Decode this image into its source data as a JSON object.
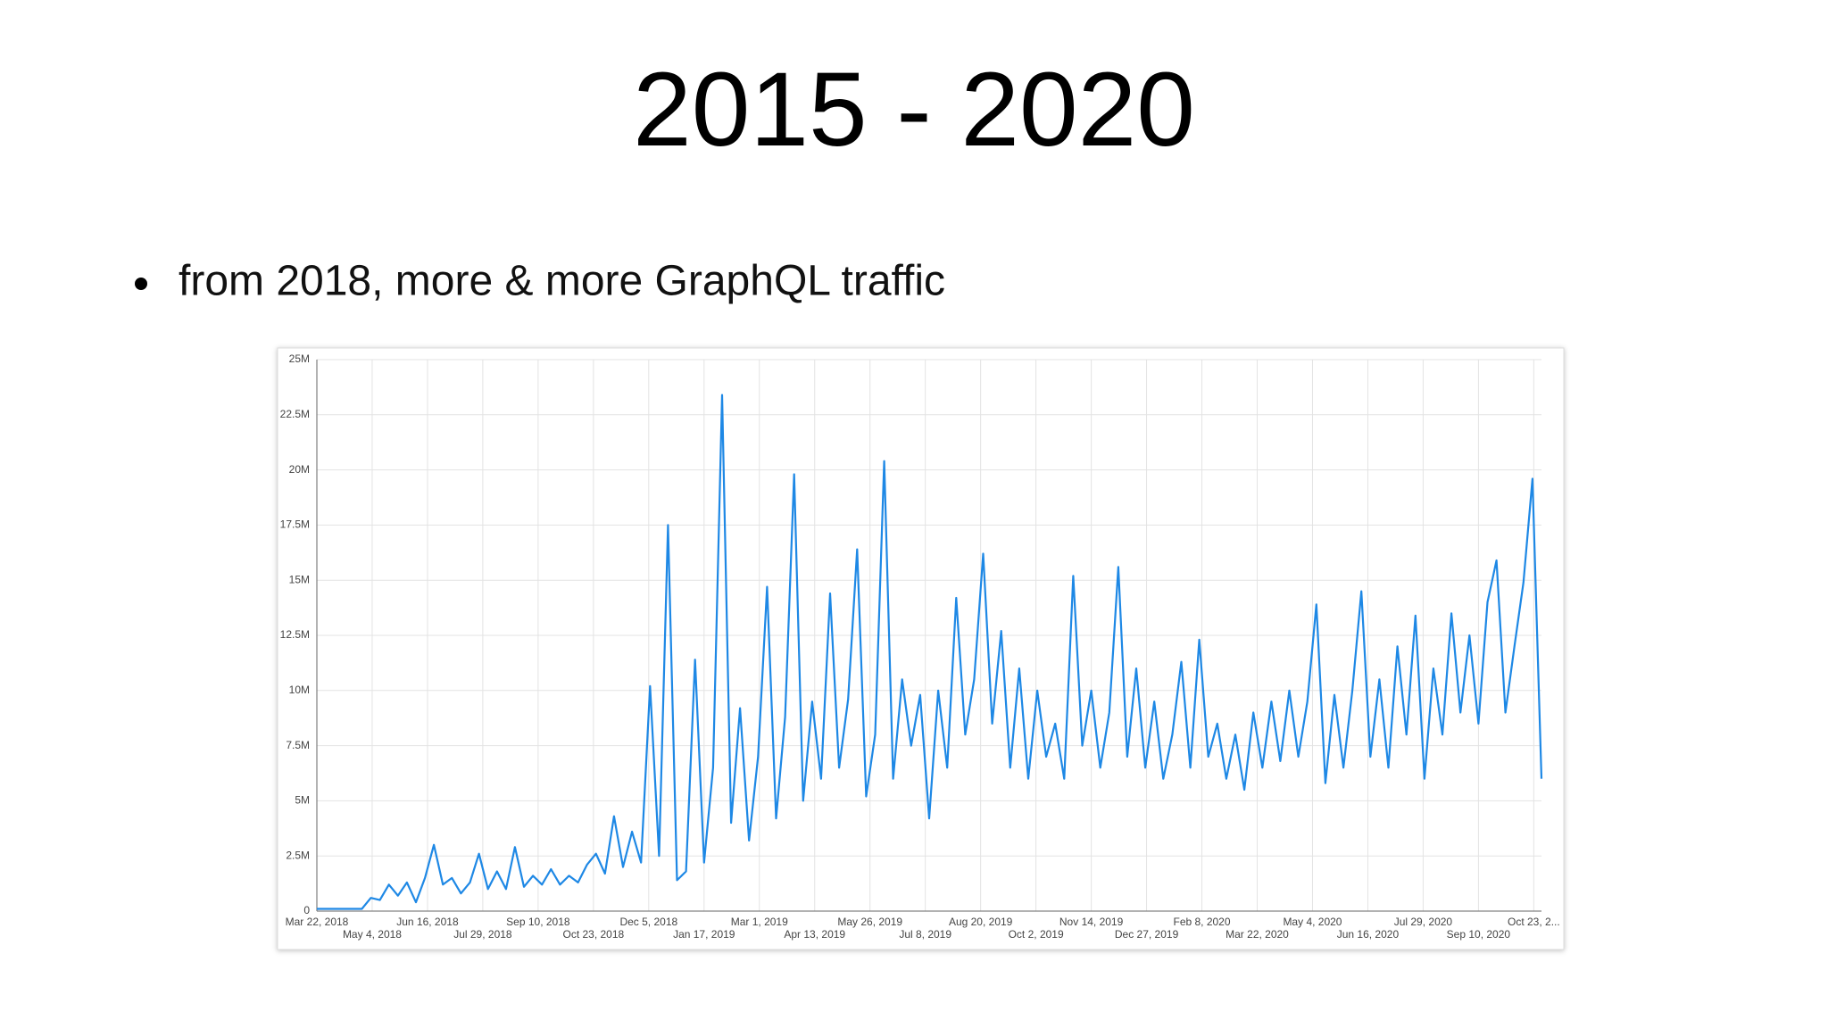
{
  "title": "2015 - 2020",
  "bullets": [
    "from 2018, more & more GraphQL traffic"
  ],
  "chart_data": {
    "type": "line",
    "x": [
      "2018-03-22",
      "2018-03-29",
      "2018-04-05",
      "2018-04-12",
      "2018-04-19",
      "2018-04-26",
      "2018-05-03",
      "2018-05-10",
      "2018-05-17",
      "2018-05-24",
      "2018-05-31",
      "2018-06-07",
      "2018-06-14",
      "2018-06-21",
      "2018-06-28",
      "2018-07-05",
      "2018-07-12",
      "2018-07-19",
      "2018-07-26",
      "2018-08-02",
      "2018-08-09",
      "2018-08-16",
      "2018-08-23",
      "2018-08-30",
      "2018-09-06",
      "2018-09-13",
      "2018-09-20",
      "2018-09-27",
      "2018-10-04",
      "2018-10-11",
      "2018-10-18",
      "2018-10-25",
      "2018-11-01",
      "2018-11-08",
      "2018-11-15",
      "2018-11-22",
      "2018-11-29",
      "2018-12-06",
      "2018-12-13",
      "2018-12-20",
      "2018-12-27",
      "2019-01-03",
      "2019-01-10",
      "2019-01-17",
      "2019-01-24",
      "2019-01-31",
      "2019-02-07",
      "2019-02-14",
      "2019-02-21",
      "2019-02-28",
      "2019-03-07",
      "2019-03-14",
      "2019-03-21",
      "2019-03-28",
      "2019-04-04",
      "2019-04-11",
      "2019-04-18",
      "2019-04-25",
      "2019-05-02",
      "2019-05-09",
      "2019-05-16",
      "2019-05-23",
      "2019-05-30",
      "2019-06-06",
      "2019-06-13",
      "2019-06-20",
      "2019-06-27",
      "2019-07-04",
      "2019-07-11",
      "2019-07-18",
      "2019-07-25",
      "2019-08-01",
      "2019-08-08",
      "2019-08-15",
      "2019-08-22",
      "2019-08-29",
      "2019-09-05",
      "2019-09-12",
      "2019-09-19",
      "2019-09-26",
      "2019-10-03",
      "2019-10-10",
      "2019-10-17",
      "2019-10-24",
      "2019-10-31",
      "2019-11-07",
      "2019-11-14",
      "2019-11-21",
      "2019-11-28",
      "2019-12-05",
      "2019-12-12",
      "2019-12-19",
      "2019-12-26",
      "2020-01-02",
      "2020-01-09",
      "2020-01-16",
      "2020-01-23",
      "2020-01-30",
      "2020-02-06",
      "2020-02-13",
      "2020-02-20",
      "2020-02-27",
      "2020-03-05",
      "2020-03-12",
      "2020-03-19",
      "2020-03-26",
      "2020-04-02",
      "2020-04-09",
      "2020-04-16",
      "2020-04-23",
      "2020-04-30",
      "2020-05-07",
      "2020-05-14",
      "2020-05-21",
      "2020-05-28",
      "2020-06-04",
      "2020-06-11",
      "2020-06-18",
      "2020-06-25",
      "2020-07-02",
      "2020-07-09",
      "2020-07-16",
      "2020-07-23",
      "2020-07-30",
      "2020-08-06",
      "2020-08-13",
      "2020-08-20",
      "2020-08-27",
      "2020-09-03",
      "2020-09-10",
      "2020-09-17",
      "2020-09-24",
      "2020-10-01",
      "2020-10-08",
      "2020-10-15",
      "2020-10-22",
      "2020-10-29"
    ],
    "series": [
      {
        "color": "#1e88e5",
        "values": [
          0.1,
          0.1,
          0.1,
          0.1,
          0.1,
          0.1,
          0.6,
          0.5,
          1.2,
          0.7,
          1.3,
          0.4,
          1.5,
          3.0,
          1.2,
          1.5,
          0.8,
          1.3,
          2.6,
          1.0,
          1.8,
          1.0,
          2.9,
          1.1,
          1.6,
          1.2,
          1.9,
          1.2,
          1.6,
          1.3,
          2.1,
          2.6,
          1.7,
          4.3,
          2.0,
          3.6,
          2.2,
          10.2,
          2.5,
          17.5,
          1.4,
          1.8,
          11.4,
          2.2,
          6.5,
          23.4,
          4.0,
          9.2,
          3.2,
          7.0,
          14.7,
          4.2,
          8.8,
          19.8,
          5.0,
          9.5,
          6.0,
          14.4,
          6.5,
          9.6,
          16.4,
          5.2,
          8.0,
          20.4,
          6.0,
          10.5,
          7.5,
          9.8,
          4.2,
          10.0,
          6.5,
          14.2,
          8.0,
          10.5,
          16.2,
          8.5,
          12.7,
          6.5,
          11.0,
          6.0,
          10.0,
          7.0,
          8.5,
          6.0,
          15.2,
          7.5,
          10.0,
          6.5,
          9.0,
          15.6,
          7.0,
          11.0,
          6.5,
          9.5,
          6.0,
          8.0,
          11.3,
          6.5,
          12.3,
          7.0,
          8.5,
          6.0,
          8.0,
          5.5,
          9.0,
          6.5,
          9.5,
          6.8,
          10.0,
          7.0,
          9.5,
          13.9,
          5.8,
          9.8,
          6.5,
          10.0,
          14.5,
          7.0,
          10.5,
          6.5,
          12.0,
          8.0,
          13.4,
          6.0,
          11.0,
          8.0,
          13.5,
          9.0,
          12.5,
          8.5,
          14.0,
          15.9,
          9.0,
          12.0,
          14.9,
          19.6,
          6.0
        ]
      }
    ],
    "xlim": [
      "2018-03-22",
      "2020-10-29"
    ],
    "xticks": [
      {
        "value": "2018-03-22",
        "label": "Mar 22, 2018"
      },
      {
        "value": "2018-05-04",
        "label": "May 4, 2018"
      },
      {
        "value": "2018-06-16",
        "label": "Jun 16, 2018"
      },
      {
        "value": "2018-07-29",
        "label": "Jul 29, 2018"
      },
      {
        "value": "2018-09-10",
        "label": "Sep 10, 2018"
      },
      {
        "value": "2018-10-23",
        "label": "Oct 23, 2018"
      },
      {
        "value": "2018-12-05",
        "label": "Dec 5, 2018"
      },
      {
        "value": "2019-01-17",
        "label": "Jan 17, 2019"
      },
      {
        "value": "2019-03-01",
        "label": "Mar 1, 2019"
      },
      {
        "value": "2019-04-13",
        "label": "Apr 13, 2019"
      },
      {
        "value": "2019-05-26",
        "label": "May 26, 2019"
      },
      {
        "value": "2019-07-08",
        "label": "Jul 8, 2019"
      },
      {
        "value": "2019-08-20",
        "label": "Aug 20, 2019"
      },
      {
        "value": "2019-10-02",
        "label": "Oct 2, 2019"
      },
      {
        "value": "2019-11-14",
        "label": "Nov 14, 2019"
      },
      {
        "value": "2019-12-27",
        "label": "Dec 27, 2019"
      },
      {
        "value": "2020-02-08",
        "label": "Feb 8, 2020"
      },
      {
        "value": "2020-03-22",
        "label": "Mar 22, 2020"
      },
      {
        "value": "2020-05-04",
        "label": "May 4, 2020"
      },
      {
        "value": "2020-06-16",
        "label": "Jun 16, 2020"
      },
      {
        "value": "2020-07-29",
        "label": "Jul 29, 2020"
      },
      {
        "value": "2020-09-10",
        "label": "Sep 10, 2020"
      },
      {
        "value": "2020-10-23",
        "label": "Oct 23, 2..."
      }
    ],
    "ylim": [
      0,
      25
    ],
    "yticks": [
      0,
      {
        "value": 2.5,
        "label": "2.5M"
      },
      {
        "value": 5,
        "label": "5M"
      },
      {
        "value": 7.5,
        "label": "7.5M"
      },
      {
        "value": 10,
        "label": "10M"
      },
      {
        "value": 12.5,
        "label": "12.5M"
      },
      {
        "value": 15,
        "label": "15M"
      },
      {
        "value": 17.5,
        "label": "17.5M"
      },
      {
        "value": 20,
        "label": "20M"
      },
      {
        "value": 22.5,
        "label": "22.5M"
      },
      {
        "value": 25,
        "label": "25M"
      }
    ],
    "grid": true
  }
}
